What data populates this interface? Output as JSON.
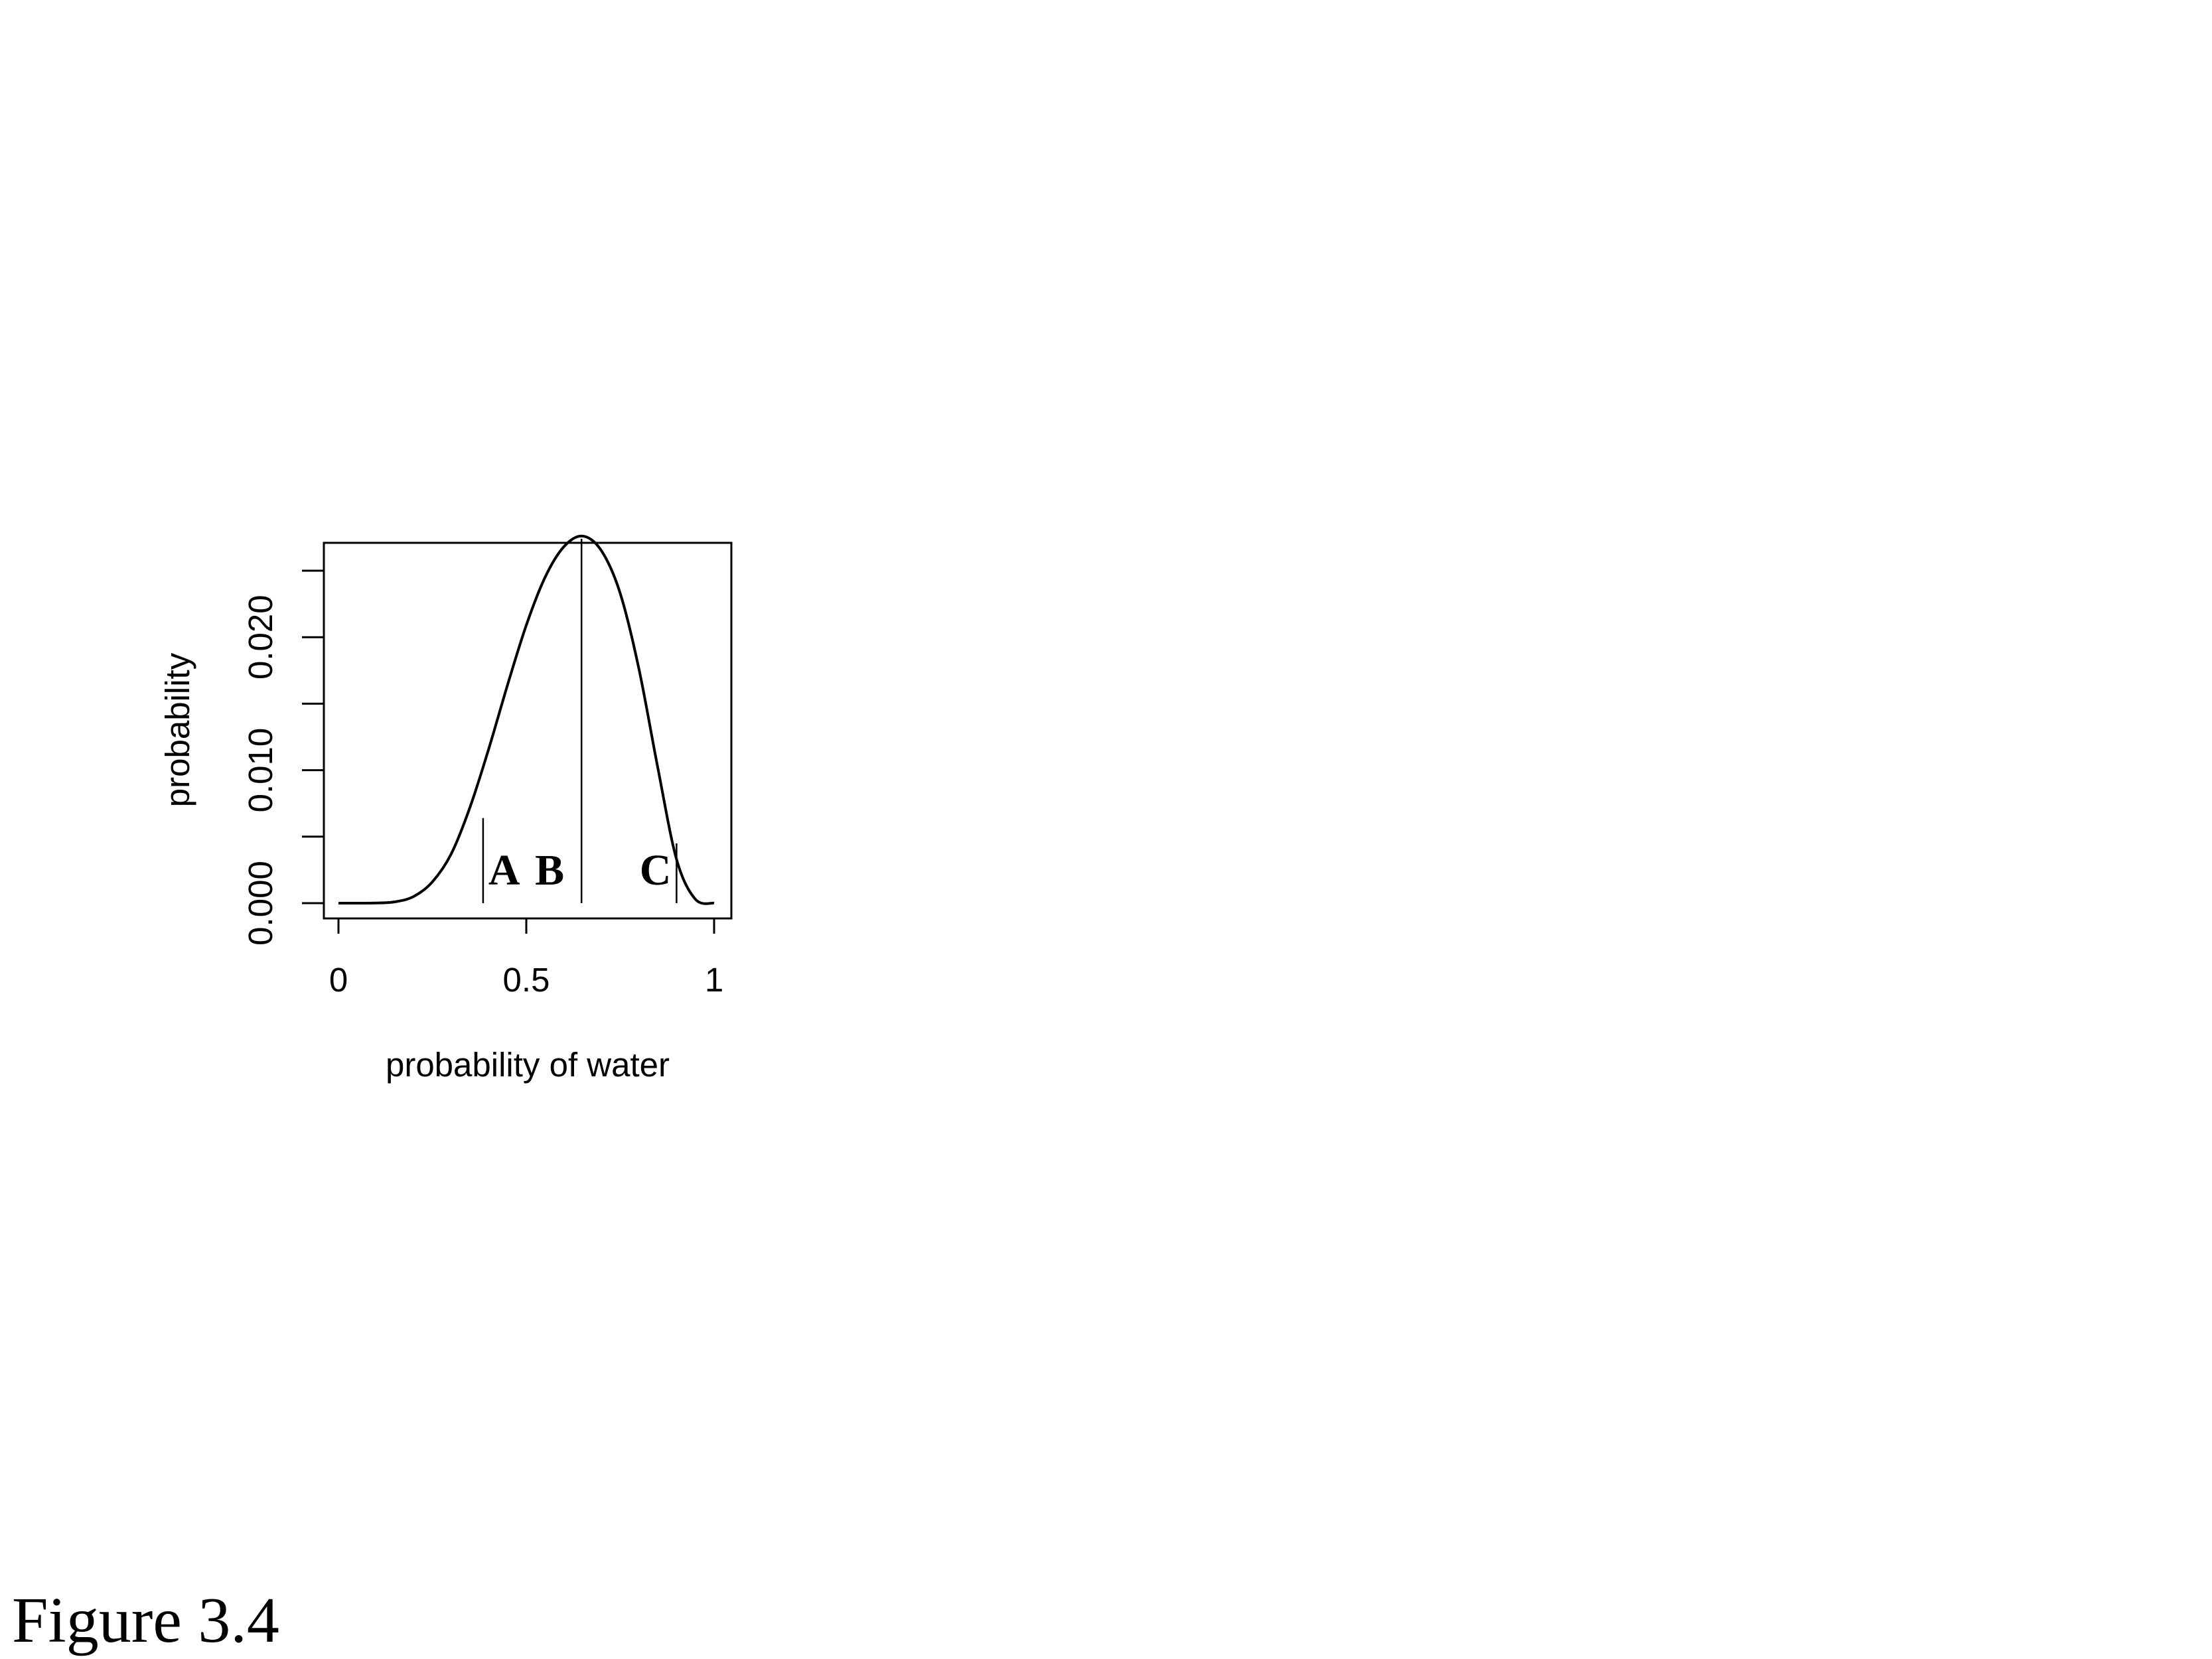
{
  "figure_label": "Figure 3.4",
  "chart_data": {
    "type": "line",
    "xlabel": "probability of water",
    "ylabel": "probability",
    "xlim": [
      0,
      1
    ],
    "ylim": [
      0,
      0.0275
    ],
    "x_ticks": [
      0,
      0.5,
      1
    ],
    "x_tick_labels": [
      "0",
      "0.5",
      "1"
    ],
    "y_ticks": [
      0,
      0.005,
      0.01,
      0.015,
      0.02,
      0.025
    ],
    "y_tick_labels": [
      "0.000",
      "",
      "0.010",
      "",
      "0.020",
      ""
    ],
    "grid": false,
    "legend": "none",
    "series": [
      {
        "x": [
          0,
          0.05,
          0.1,
          0.15,
          0.2,
          0.25,
          0.3,
          0.35,
          0.4,
          0.45,
          0.5,
          0.55,
          0.6,
          0.65,
          0.7,
          0.75,
          0.8,
          0.85,
          0.9,
          0.95,
          1
        ],
        "y": [
          0,
          0,
          1e-05,
          0.0001,
          0.0005,
          0.0016,
          0.0037,
          0.0072,
          0.0116,
          0.0164,
          0.0209,
          0.0245,
          0.0268,
          0.0276,
          0.0265,
          0.0233,
          0.0176,
          0.0102,
          0.0033,
          0.0003,
          0
        ]
      }
    ],
    "markers": [
      {
        "label": "A",
        "x": 0.385,
        "y": 0.0064
      },
      {
        "label": "B",
        "x": 0.647,
        "y": 0.0274
      },
      {
        "label": "C",
        "x": 0.9,
        "y": 0.0045
      }
    ]
  }
}
